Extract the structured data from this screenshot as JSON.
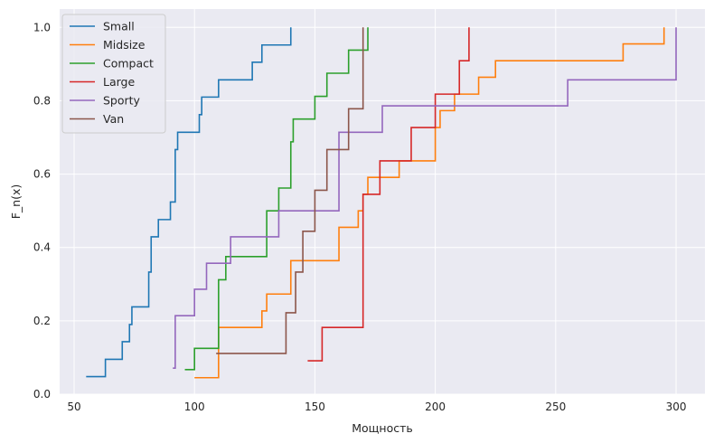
{
  "chart_data": {
    "type": "line",
    "step": "post",
    "xlabel": "Мощность",
    "ylabel": "F_n(x)",
    "xlim": [
      44,
      312
    ],
    "ylim": [
      0,
      1.05
    ],
    "xticks": [
      50,
      100,
      150,
      200,
      250,
      300
    ],
    "yticks": [
      0.0,
      0.2,
      0.4,
      0.6,
      0.8,
      1.0
    ],
    "xtick_labels": [
      "50",
      "100",
      "150",
      "200",
      "250",
      "300"
    ],
    "ytick_labels": [
      "0.0",
      "0.2",
      "0.4",
      "0.6",
      "0.8",
      "1.0"
    ],
    "grid": true,
    "legend_position": "top-left",
    "series": [
      {
        "name": "Small",
        "color": "#1f77b4",
        "points": [
          [
            55,
            0.048
          ],
          [
            63,
            0.095
          ],
          [
            70,
            0.143
          ],
          [
            73,
            0.19
          ],
          [
            74,
            0.238
          ],
          [
            81,
            0.333
          ],
          [
            82,
            0.429
          ],
          [
            85,
            0.476
          ],
          [
            90,
            0.524
          ],
          [
            92,
            0.667
          ],
          [
            93,
            0.714
          ],
          [
            102,
            0.762
          ],
          [
            103,
            0.81
          ],
          [
            110,
            0.857
          ],
          [
            124,
            0.905
          ],
          [
            128,
            0.952
          ],
          [
            140,
            1.0
          ]
        ]
      },
      {
        "name": "Midsize",
        "color": "#ff7f0e",
        "points": [
          [
            100,
            0.045
          ],
          [
            110,
            0.182
          ],
          [
            128,
            0.227
          ],
          [
            130,
            0.273
          ],
          [
            140,
            0.364
          ],
          [
            160,
            0.455
          ],
          [
            168,
            0.5
          ],
          [
            170,
            0.545
          ],
          [
            172,
            0.591
          ],
          [
            185,
            0.636
          ],
          [
            200,
            0.727
          ],
          [
            202,
            0.773
          ],
          [
            208,
            0.818
          ],
          [
            218,
            0.864
          ],
          [
            225,
            0.909
          ],
          [
            278,
            0.955
          ],
          [
            295,
            1.0
          ]
        ]
      },
      {
        "name": "Compact",
        "color": "#2ca02c",
        "points": [
          [
            96,
            0.067
          ],
          [
            100,
            0.125
          ],
          [
            110,
            0.312
          ],
          [
            113,
            0.375
          ],
          [
            130,
            0.5
          ],
          [
            135,
            0.562
          ],
          [
            140,
            0.688
          ],
          [
            141,
            0.75
          ],
          [
            150,
            0.812
          ],
          [
            155,
            0.875
          ],
          [
            164,
            0.938
          ],
          [
            172,
            1.0
          ]
        ]
      },
      {
        "name": "Large",
        "color": "#d62728",
        "points": [
          [
            147,
            0.091
          ],
          [
            153,
            0.182
          ],
          [
            170,
            0.545
          ],
          [
            177,
            0.636
          ],
          [
            190,
            0.727
          ],
          [
            200,
            0.818
          ],
          [
            210,
            0.909
          ],
          [
            214,
            1.0
          ]
        ]
      },
      {
        "name": "Sporty",
        "color": "#9467bd",
        "points": [
          [
            91,
            0.071
          ],
          [
            92,
            0.214
          ],
          [
            100,
            0.286
          ],
          [
            105,
            0.357
          ],
          [
            114,
            0.357
          ],
          [
            115,
            0.429
          ],
          [
            135,
            0.5
          ],
          [
            160,
            0.714
          ],
          [
            178,
            0.786
          ],
          [
            255,
            0.857
          ],
          [
            300,
            1.0
          ]
        ]
      },
      {
        "name": "Van",
        "color": "#8c564b",
        "points": [
          [
            109,
            0.111
          ],
          [
            138,
            0.222
          ],
          [
            142,
            0.333
          ],
          [
            145,
            0.444
          ],
          [
            150,
            0.556
          ],
          [
            155,
            0.667
          ],
          [
            164,
            0.778
          ],
          [
            170,
            1.0
          ]
        ]
      }
    ]
  }
}
